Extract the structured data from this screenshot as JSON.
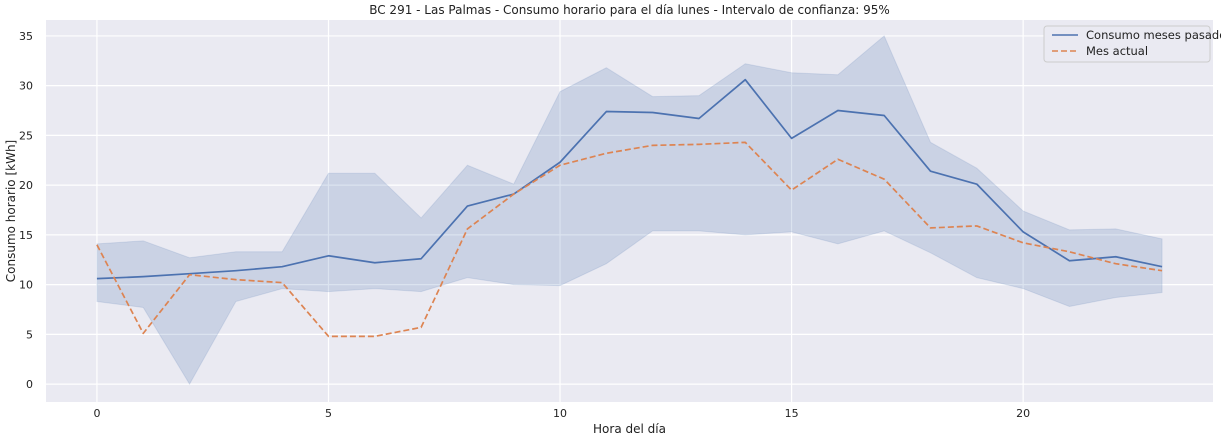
{
  "chart_data": {
    "type": "line",
    "title": "BC 291 - Las Palmas - Consumo horario para el día lunes - Intervalo de confianza: 95%",
    "xlabel": "Hora del día",
    "ylabel": "Consumo horario [kWh]",
    "xlim": [
      -1.1,
      24.1
    ],
    "ylim": [
      -1.8,
      36.6
    ],
    "xticks": [
      0,
      5,
      10,
      15,
      20
    ],
    "yticks": [
      0,
      5,
      10,
      15,
      20,
      25,
      30,
      35
    ],
    "grid": true,
    "legend_position": "top-right",
    "x": [
      0,
      1,
      2,
      3,
      4,
      5,
      6,
      7,
      8,
      9,
      10,
      11,
      12,
      13,
      14,
      15,
      16,
      17,
      18,
      19,
      20,
      21,
      22,
      23
    ],
    "series": [
      {
        "name": "Consumo meses pasados",
        "style": "solid",
        "color": "#4c72b0",
        "values": [
          10.6,
          10.8,
          11.1,
          11.4,
          11.8,
          12.9,
          12.2,
          12.6,
          17.9,
          19.1,
          22.3,
          27.4,
          27.3,
          26.7,
          30.6,
          24.7,
          27.5,
          27.0,
          21.4,
          20.1,
          15.3,
          12.4,
          12.8,
          11.8
        ],
        "ci_lower": [
          8.3,
          7.7,
          0.0,
          8.3,
          9.6,
          9.3,
          9.6,
          9.3,
          10.7,
          10.0,
          9.9,
          12.1,
          15.4,
          15.4,
          15.0,
          15.3,
          14.1,
          15.4,
          13.2,
          10.7,
          9.6,
          7.8,
          8.7,
          9.2
        ],
        "ci_upper": [
          14.1,
          14.4,
          12.7,
          13.3,
          13.3,
          21.2,
          21.2,
          16.7,
          22.0,
          20.1,
          29.4,
          31.8,
          28.9,
          29.0,
          32.2,
          31.3,
          31.1,
          35.0,
          24.3,
          21.7,
          17.4,
          15.5,
          15.6,
          14.6
        ]
      },
      {
        "name": "Mes actual",
        "style": "dashed",
        "color": "#dd8452",
        "values": [
          14.0,
          5.1,
          11.0,
          10.5,
          10.2,
          4.8,
          4.8,
          5.7,
          15.6,
          19.1,
          22.0,
          23.2,
          24.0,
          24.1,
          24.3,
          19.5,
          22.6,
          20.6,
          15.7,
          15.9,
          14.2,
          13.3,
          12.1,
          11.4
        ]
      }
    ],
    "ci_color": "#4c72b0"
  }
}
